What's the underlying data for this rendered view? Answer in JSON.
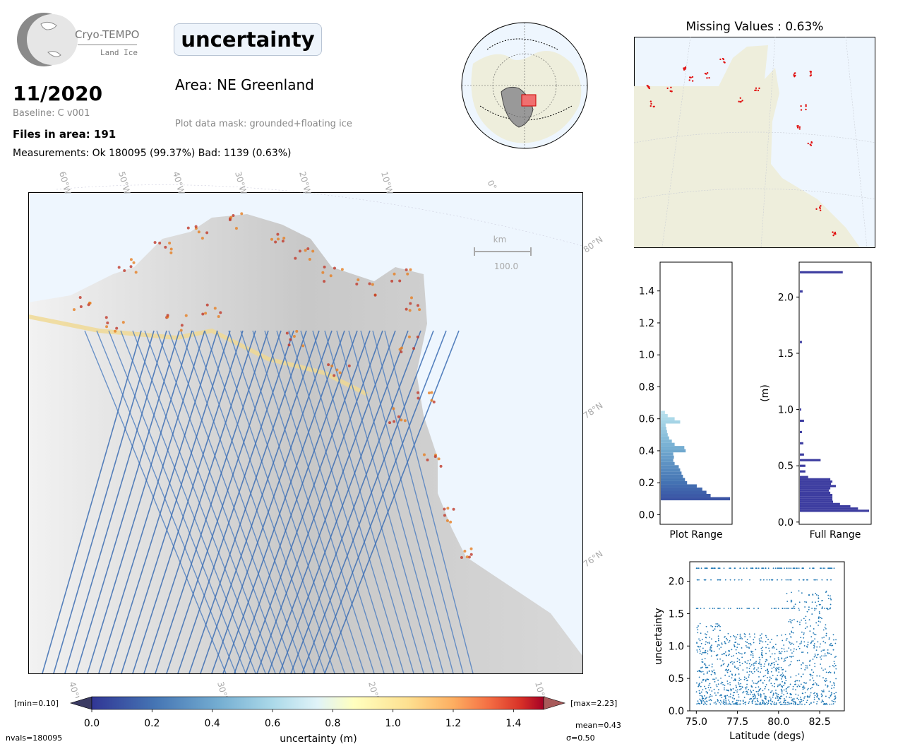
{
  "header": {
    "logo_name": "Cryo-TEMPO",
    "logo_sub": "Land Ice",
    "date": "11/2020",
    "baseline": "Baseline: C v001",
    "files": "Files in area: 191",
    "measurements": "Measurements: Ok 180095 (99.37%) Bad: 1139 (0.63%)",
    "parameter": "uncertainty",
    "area": "Area: NE Greenland",
    "mask": "Plot data mask: grounded+floating ice"
  },
  "main_map": {
    "lon_labels": [
      "60°W",
      "50°W",
      "40°W",
      "30°W",
      "20°W",
      "10°W",
      "0°"
    ],
    "lat_labels": [
      "80°N",
      "78°N",
      "76°N"
    ],
    "bottom_labels": [
      "40°W",
      "30°W",
      "20°W",
      "10°W"
    ],
    "scale_unit": "km",
    "scale_value": "100.0"
  },
  "missing": {
    "title": "Missing Values : 0.63%"
  },
  "colorbar": {
    "min_label": "[min=0.10]",
    "max_label": "[max=2.23]",
    "xlabel": "uncertainty (m)",
    "ticks": [
      "0.0",
      "0.2",
      "0.4",
      "0.6",
      "0.8",
      "1.0",
      "1.2",
      "1.4"
    ],
    "nvals": "nvals=180095",
    "mean": "mean=0.43",
    "sigma": "σ=0.50"
  },
  "colors": {
    "ocean": "#eef6fe",
    "land": "#eeeedc",
    "track_blue": "#3b6db3",
    "hist_dark": "#3d3da0"
  },
  "chart_data": [
    {
      "type": "bar",
      "name_label": "Plot Range",
      "orientation": "horizontal",
      "xlabel": "Plot Range",
      "ylabel": "",
      "ylim": [
        -0.06,
        1.58
      ],
      "yticks": [
        0.0,
        0.2,
        0.4,
        0.6,
        0.8,
        1.0,
        1.2,
        1.4
      ],
      "bins": [
        0.1,
        0.12,
        0.14,
        0.16,
        0.18,
        0.2,
        0.22,
        0.24,
        0.26,
        0.28,
        0.3,
        0.32,
        0.34,
        0.36,
        0.38,
        0.4,
        0.42,
        0.44,
        0.46,
        0.48,
        0.5,
        0.52,
        0.54,
        0.56,
        0.58,
        0.6,
        0.62,
        0.64
      ],
      "values": [
        1.0,
        0.72,
        0.66,
        0.6,
        0.52,
        0.38,
        0.35,
        0.32,
        0.3,
        0.28,
        0.26,
        0.2,
        0.18,
        0.19,
        0.18,
        0.36,
        0.34,
        0.2,
        0.16,
        0.12,
        0.1,
        0.09,
        0.08,
        0.07,
        0.28,
        0.2,
        0.1,
        0.06
      ]
    },
    {
      "type": "bar",
      "orientation": "horizontal",
      "xlabel": "Full Range",
      "ylabel": "(m)",
      "ylim": [
        -0.02,
        2.31
      ],
      "yticks": [
        0.0,
        0.5,
        1.0,
        1.5,
        2.0
      ],
      "bins": [
        0.1,
        0.12,
        0.14,
        0.16,
        0.18,
        0.2,
        0.22,
        0.24,
        0.26,
        0.28,
        0.3,
        0.32,
        0.34,
        0.36,
        0.38,
        0.4,
        0.45,
        0.5,
        0.55,
        0.6,
        0.7,
        0.8,
        0.9,
        1.0,
        1.6,
        2.05,
        2.22
      ],
      "values": [
        1.0,
        0.84,
        0.73,
        0.58,
        0.48,
        0.47,
        0.47,
        0.47,
        0.44,
        0.42,
        0.44,
        0.52,
        0.45,
        0.47,
        0.44,
        0.12,
        0.08,
        0.08,
        0.3,
        0.06,
        0.05,
        0.03,
        0.06,
        0.02,
        0.03,
        0.04,
        0.62
      ]
    },
    {
      "type": "scatter",
      "xlabel": "Latitude (degs)",
      "ylabel": "uncertainty",
      "xlim": [
        74.6,
        84.0
      ],
      "ylim": [
        0.0,
        2.3
      ],
      "xticks": [
        75.0,
        77.5,
        80.0,
        82.5
      ],
      "yticks": [
        0.0,
        0.5,
        1.0,
        1.5,
        2.0
      ],
      "x_range": [
        75.0,
        83.5
      ],
      "y_range": [
        0.1,
        2.23
      ],
      "point_color": "#1f77b4"
    }
  ]
}
